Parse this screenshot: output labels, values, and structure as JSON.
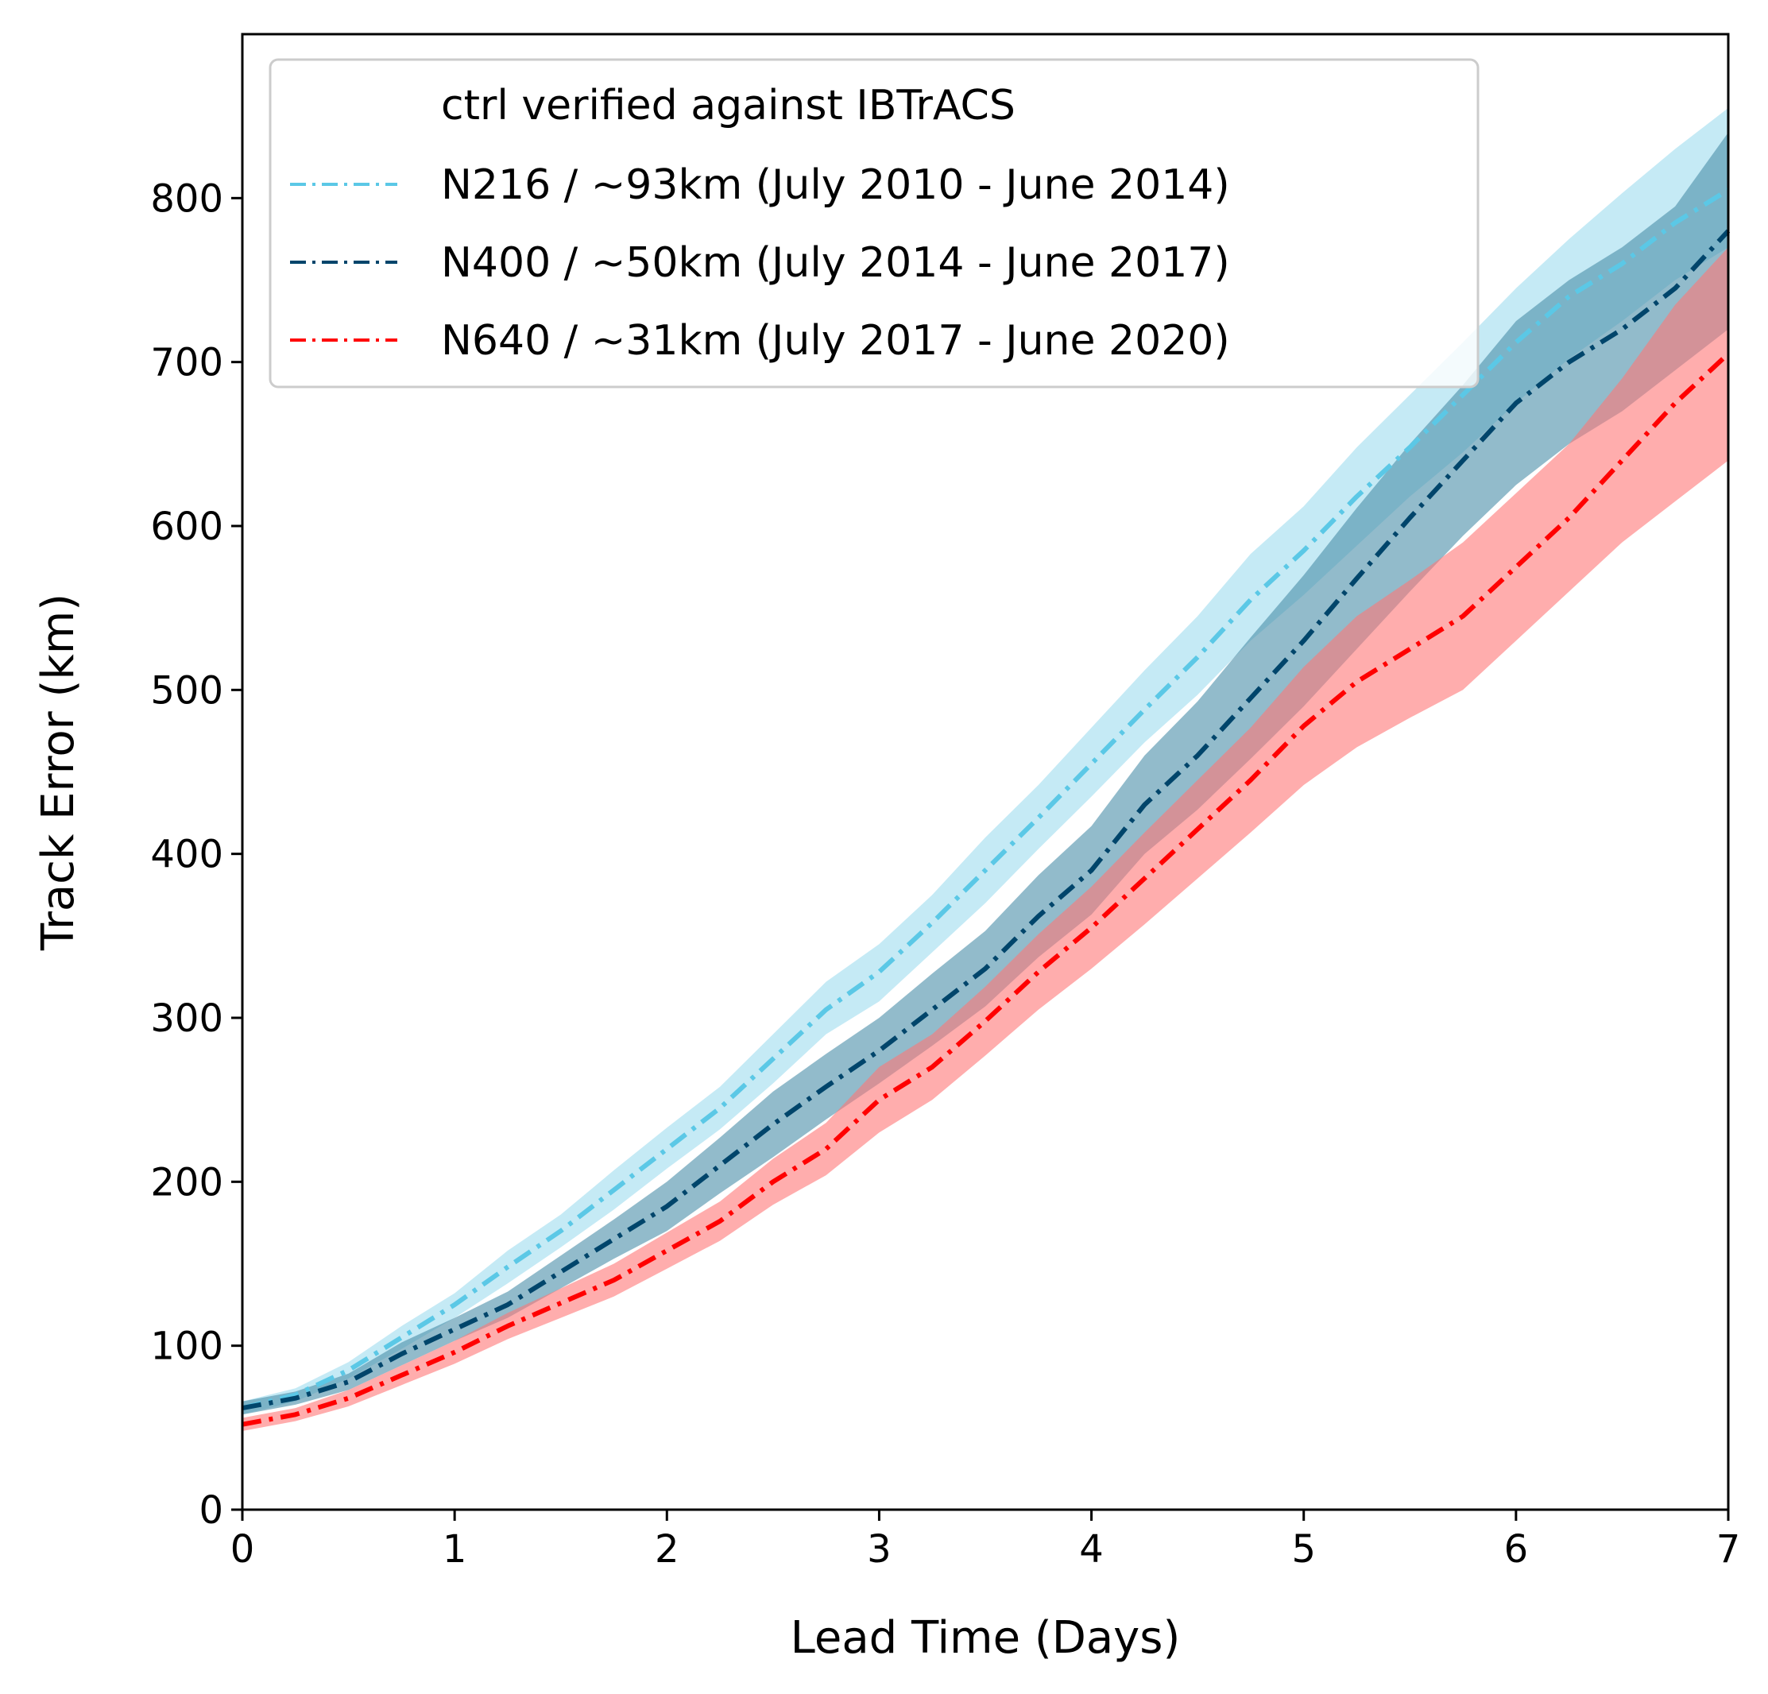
{
  "chart_data": {
    "type": "line",
    "xlabel": "Lead Time (Days)",
    "ylabel": "Track Error (km)",
    "xlim": [
      0,
      7
    ],
    "ylim": [
      0,
      900
    ],
    "xticks": [
      0,
      1,
      2,
      3,
      4,
      5,
      6,
      7
    ],
    "yticks": [
      0,
      100,
      200,
      300,
      400,
      500,
      600,
      700,
      800
    ],
    "grid": false,
    "legend_position": "top-left",
    "legend_title": "ctrl verified against IBTrACS",
    "x": [
      0,
      0.25,
      0.5,
      0.75,
      1,
      1.25,
      1.5,
      1.75,
      2,
      2.25,
      2.5,
      2.75,
      3,
      3.25,
      3.5,
      3.75,
      4,
      4.25,
      4.5,
      4.75,
      5,
      5.25,
      5.5,
      5.75,
      6,
      6.25,
      6.5,
      6.75,
      7
    ],
    "series": [
      {
        "name": "N216 / ~93km (July 2010 - June 2014)",
        "color": "#5bc8e6",
        "band_color": "#a6dff0",
        "values": [
          62,
          70,
          85,
          105,
          125,
          148,
          170,
          195,
          220,
          245,
          275,
          305,
          328,
          358,
          390,
          422,
          455,
          488,
          520,
          555,
          585,
          618,
          648,
          680,
          712,
          740,
          760,
          785,
          805
        ],
        "lower": [
          58,
          66,
          80,
          98,
          117,
          138,
          160,
          183,
          208,
          232,
          260,
          290,
          310,
          340,
          370,
          403,
          435,
          468,
          497,
          530,
          558,
          588,
          618,
          645,
          675,
          702,
          725,
          750,
          770
        ],
        "upper": [
          66,
          74,
          90,
          112,
          132,
          158,
          180,
          207,
          233,
          258,
          290,
          322,
          345,
          375,
          410,
          442,
          477,
          512,
          545,
          583,
          612,
          648,
          680,
          712,
          745,
          775,
          803,
          830,
          855
        ]
      },
      {
        "name": "N400 / ~50km (July 2014 - June 2017)",
        "color": "#00456b",
        "band_color": "#4a8da8",
        "values": [
          62,
          68,
          78,
          95,
          110,
          125,
          145,
          165,
          185,
          210,
          235,
          258,
          280,
          305,
          330,
          362,
          390,
          430,
          460,
          495,
          530,
          568,
          605,
          640,
          675,
          700,
          720,
          745,
          780
        ],
        "lower": [
          58,
          64,
          73,
          88,
          103,
          117,
          135,
          153,
          170,
          193,
          215,
          238,
          260,
          283,
          307,
          337,
          363,
          400,
          427,
          458,
          490,
          525,
          560,
          594,
          625,
          650,
          670,
          695,
          720
        ],
        "upper": [
          66,
          72,
          83,
          102,
          117,
          133,
          155,
          177,
          200,
          227,
          255,
          278,
          300,
          327,
          353,
          387,
          417,
          460,
          493,
          532,
          570,
          611,
          650,
          686,
          725,
          750,
          770,
          795,
          840
        ]
      },
      {
        "name": "N640 / ~31km (July 2017 - June 2020)",
        "color": "#ff0000",
        "band_color": "#ff7777",
        "values": [
          52,
          58,
          68,
          82,
          96,
          112,
          126,
          140,
          158,
          176,
          200,
          220,
          250,
          270,
          298,
          328,
          355,
          385,
          415,
          445,
          478,
          505,
          525,
          545,
          575,
          605,
          640,
          675,
          705
        ],
        "lower": [
          48,
          54,
          63,
          76,
          89,
          104,
          117,
          130,
          147,
          164,
          186,
          204,
          230,
          250,
          277,
          305,
          330,
          357,
          385,
          413,
          442,
          465,
          483,
          500,
          530,
          560,
          590,
          615,
          640
        ],
        "upper": [
          56,
          62,
          73,
          88,
          103,
          120,
          135,
          150,
          169,
          188,
          214,
          236,
          270,
          290,
          319,
          351,
          380,
          413,
          445,
          477,
          514,
          545,
          567,
          590,
          620,
          650,
          690,
          735,
          770
        ]
      }
    ]
  }
}
